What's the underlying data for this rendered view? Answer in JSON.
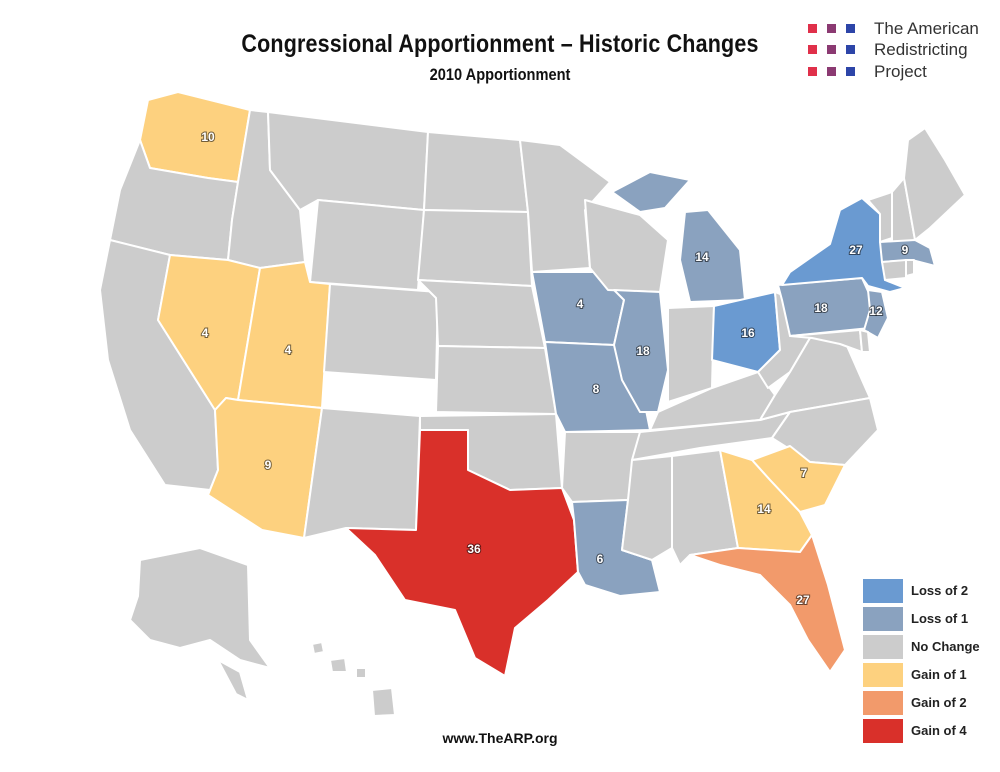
{
  "title": "Congressional Apportionment – Historic Changes",
  "subtitle": "2010 Apportionment",
  "logo": {
    "lines": [
      "The American",
      "Redistricting",
      "Project"
    ],
    "dot_colors": [
      "#e0304a",
      "#8b3a72",
      "#2d45a8"
    ]
  },
  "colors": {
    "loss2": "#6a9ad1",
    "loss1": "#8aa2bf",
    "none": "#cccccc",
    "gain1": "#fdd17f",
    "gain2": "#f29a6b",
    "gain4": "#d9302a"
  },
  "legend": [
    {
      "label": "Loss of 2",
      "color": "#6a9ad1"
    },
    {
      "label": "Loss of 1",
      "color": "#8aa2bf"
    },
    {
      "label": "No Change",
      "color": "#cccccc"
    },
    {
      "label": "Gain of 1",
      "color": "#fdd17f"
    },
    {
      "label": "Gain of 2",
      "color": "#f29a6b"
    },
    {
      "label": "Gain of 4",
      "color": "#d9302a"
    }
  ],
  "states": [
    {
      "name": "Washington",
      "seats": "10",
      "change": "gain1"
    },
    {
      "name": "Nevada",
      "seats": "4",
      "change": "gain1"
    },
    {
      "name": "Utah",
      "seats": "4",
      "change": "gain1"
    },
    {
      "name": "Arizona",
      "seats": "9",
      "change": "gain1"
    },
    {
      "name": "Texas",
      "seats": "36",
      "change": "gain4"
    },
    {
      "name": "Iowa",
      "seats": "4",
      "change": "loss1"
    },
    {
      "name": "Missouri",
      "seats": "8",
      "change": "loss1"
    },
    {
      "name": "Louisiana",
      "seats": "6",
      "change": "loss1"
    },
    {
      "name": "Illinois",
      "seats": "18",
      "change": "loss1"
    },
    {
      "name": "Michigan",
      "seats": "14",
      "change": "loss1"
    },
    {
      "name": "Ohio",
      "seats": "16",
      "change": "loss2"
    },
    {
      "name": "Pennsylvania",
      "seats": "18",
      "change": "loss1"
    },
    {
      "name": "New York",
      "seats": "27",
      "change": "loss2"
    },
    {
      "name": "Massachusetts",
      "seats": "9",
      "change": "loss1"
    },
    {
      "name": "New Jersey",
      "seats": "12",
      "change": "loss1"
    },
    {
      "name": "South Carolina",
      "seats": "7",
      "change": "gain1"
    },
    {
      "name": "Georgia",
      "seats": "14",
      "change": "gain1"
    },
    {
      "name": "Florida",
      "seats": "27",
      "change": "gain2"
    }
  ],
  "footer": "www.TheARP.org"
}
